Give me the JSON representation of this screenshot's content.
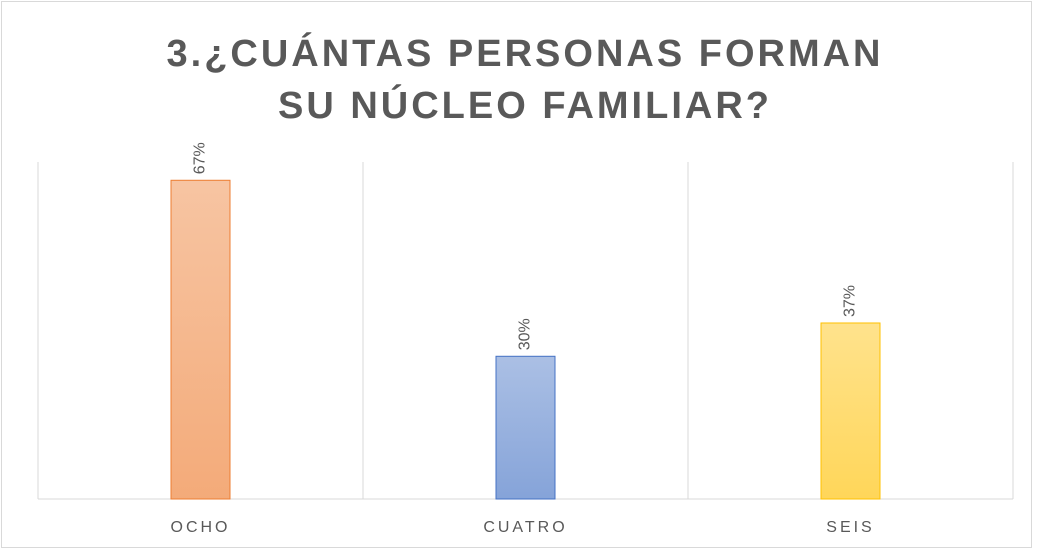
{
  "chart_data": {
    "type": "bar",
    "title": "3.¿CUÁNTAS PERSONAS FORMAN SU NÚCLEO FAMILIAR?",
    "categories": [
      "OCHO",
      "CUATRO",
      "SEIS"
    ],
    "values": [
      67,
      30,
      37
    ],
    "value_labels": [
      "67%",
      "30%",
      "37%"
    ],
    "colors": [
      "#ed7d31",
      "#4472c4",
      "#ffc000"
    ],
    "ylim": [
      0,
      70
    ]
  }
}
